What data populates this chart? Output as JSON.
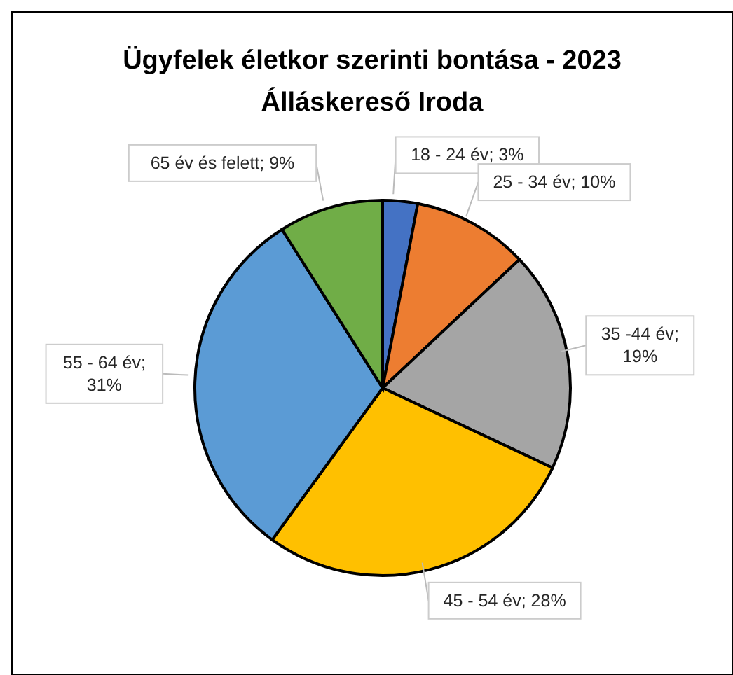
{
  "chart_data": {
    "type": "pie",
    "title": "Ügyfelek életkor szerinti bontása - 2023",
    "subtitle": "Álláskereső Iroda",
    "categories": [
      "18 - 24 év",
      "25 - 34 év",
      "35 -44 év",
      "45 - 54 év",
      "55 - 64 év",
      "65 év és felett"
    ],
    "values": [
      3,
      10,
      19,
      28,
      31,
      9
    ],
    "colors": [
      "#4472c4",
      "#ed7d31",
      "#a5a5a5",
      "#ffc000",
      "#5b9bd5",
      "#70ad47"
    ],
    "value_labels": [
      "; 3%",
      "; 10%",
      "; 19%",
      "; 28%",
      "; 31%",
      "; 9%"
    ],
    "legend": false
  }
}
